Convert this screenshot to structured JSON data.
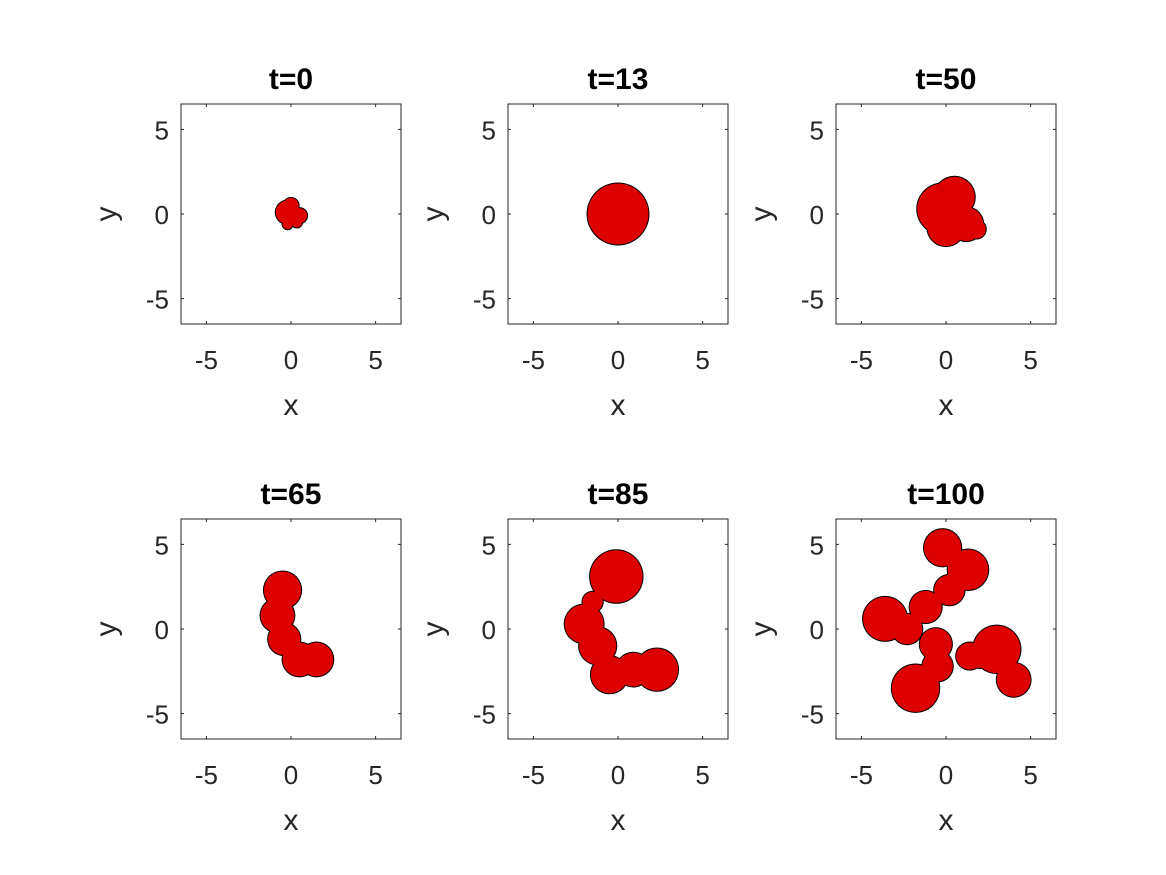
{
  "chart_data": [
    {
      "type": "scatter",
      "title": "t=0",
      "xlabel": "x",
      "ylabel": "y",
      "xlim": [
        -6.5,
        6.5
      ],
      "ylim": [
        -6.5,
        6.5
      ],
      "xticks": [
        -5,
        0,
        5
      ],
      "yticks": [
        -5,
        0,
        5
      ],
      "grid": false,
      "fill_color": "#dd0000",
      "outline_color": "#000000",
      "lobes": [
        {
          "x": -0.2,
          "y": 0.1,
          "r": 0.7
        },
        {
          "x": 0.5,
          "y": -0.1,
          "r": 0.45
        },
        {
          "x": 0.0,
          "y": 0.5,
          "r": 0.45
        },
        {
          "x": -0.2,
          "y": -0.6,
          "r": 0.3
        },
        {
          "x": 0.35,
          "y": -0.5,
          "r": 0.3
        }
      ]
    },
    {
      "type": "scatter",
      "title": "t=13",
      "xlabel": "x",
      "ylabel": "y",
      "xlim": [
        -6.5,
        6.5
      ],
      "ylim": [
        -6.5,
        6.5
      ],
      "xticks": [
        -5,
        0,
        5
      ],
      "yticks": [
        -5,
        0,
        5
      ],
      "grid": false,
      "fill_color": "#dd0000",
      "outline_color": "#000000",
      "lobes": [
        {
          "x": 0.0,
          "y": 0.0,
          "r": 1.8
        }
      ]
    },
    {
      "type": "scatter",
      "title": "t=50",
      "xlabel": "x",
      "ylabel": "y",
      "xlim": [
        -6.5,
        6.5
      ],
      "ylim": [
        -6.5,
        6.5
      ],
      "xticks": [
        -5,
        0,
        5
      ],
      "yticks": [
        -5,
        0,
        5
      ],
      "grid": false,
      "fill_color": "#dd0000",
      "outline_color": "#000000",
      "lobes": [
        {
          "x": -0.2,
          "y": 0.3,
          "r": 1.5
        },
        {
          "x": 0.5,
          "y": 1.0,
          "r": 1.2
        },
        {
          "x": 1.2,
          "y": -0.6,
          "r": 1.0
        },
        {
          "x": 0.0,
          "y": -0.8,
          "r": 1.1
        },
        {
          "x": 1.8,
          "y": -0.9,
          "r": 0.55
        }
      ]
    },
    {
      "type": "scatter",
      "title": "t=65",
      "xlabel": "x",
      "ylabel": "y",
      "xlim": [
        -6.5,
        6.5
      ],
      "ylim": [
        -6.5,
        6.5
      ],
      "xticks": [
        -5,
        0,
        5
      ],
      "yticks": [
        -5,
        0,
        5
      ],
      "grid": false,
      "fill_color": "#dd0000",
      "outline_color": "#000000",
      "lobes": [
        {
          "x": -0.5,
          "y": 2.3,
          "r": 1.1
        },
        {
          "x": -0.8,
          "y": 0.8,
          "r": 1.0
        },
        {
          "x": -0.4,
          "y": -0.6,
          "r": 0.95
        },
        {
          "x": 0.5,
          "y": -1.8,
          "r": 1.0
        },
        {
          "x": 1.5,
          "y": -1.8,
          "r": 1.0
        }
      ]
    },
    {
      "type": "scatter",
      "title": "t=85",
      "xlabel": "x",
      "ylabel": "y",
      "xlim": [
        -6.5,
        6.5
      ],
      "ylim": [
        -6.5,
        6.5
      ],
      "xticks": [
        -5,
        0,
        5
      ],
      "yticks": [
        -5,
        0,
        5
      ],
      "grid": false,
      "fill_color": "#dd0000",
      "outline_color": "#000000",
      "lobes": [
        {
          "x": -0.1,
          "y": 3.1,
          "r": 1.55
        },
        {
          "x": -2.0,
          "y": 0.3,
          "r": 1.15
        },
        {
          "x": -1.2,
          "y": -1.0,
          "r": 1.1
        },
        {
          "x": -0.5,
          "y": -2.7,
          "r": 1.1
        },
        {
          "x": 0.9,
          "y": -2.4,
          "r": 1.0
        },
        {
          "x": 2.3,
          "y": -2.4,
          "r": 1.25
        },
        {
          "x": -1.5,
          "y": 1.6,
          "r": 0.6
        }
      ]
    },
    {
      "type": "scatter",
      "title": "t=100",
      "xlabel": "x",
      "ylabel": "y",
      "xlim": [
        -6.5,
        6.5
      ],
      "ylim": [
        -6.5,
        6.5
      ],
      "xticks": [
        -5,
        0,
        5
      ],
      "yticks": [
        -5,
        0,
        5
      ],
      "grid": false,
      "fill_color": "#dd0000",
      "outline_color": "#000000",
      "lobes": [
        {
          "x": -0.2,
          "y": 4.8,
          "r": 1.1
        },
        {
          "x": 1.3,
          "y": 3.5,
          "r": 1.2
        },
        {
          "x": 0.2,
          "y": 2.3,
          "r": 0.9
        },
        {
          "x": -1.2,
          "y": 1.3,
          "r": 0.95
        },
        {
          "x": -3.6,
          "y": 0.6,
          "r": 1.3
        },
        {
          "x": -2.3,
          "y": 0.0,
          "r": 0.9
        },
        {
          "x": -0.6,
          "y": -0.9,
          "r": 0.95
        },
        {
          "x": -1.8,
          "y": -3.5,
          "r": 1.4
        },
        {
          "x": -0.5,
          "y": -2.2,
          "r": 0.9
        },
        {
          "x": 1.4,
          "y": -1.6,
          "r": 0.8
        },
        {
          "x": 3.0,
          "y": -1.2,
          "r": 1.4
        },
        {
          "x": 4.0,
          "y": -3.0,
          "r": 1.0
        },
        {
          "x": 2.0,
          "y": -1.6,
          "r": 0.7
        }
      ]
    }
  ]
}
